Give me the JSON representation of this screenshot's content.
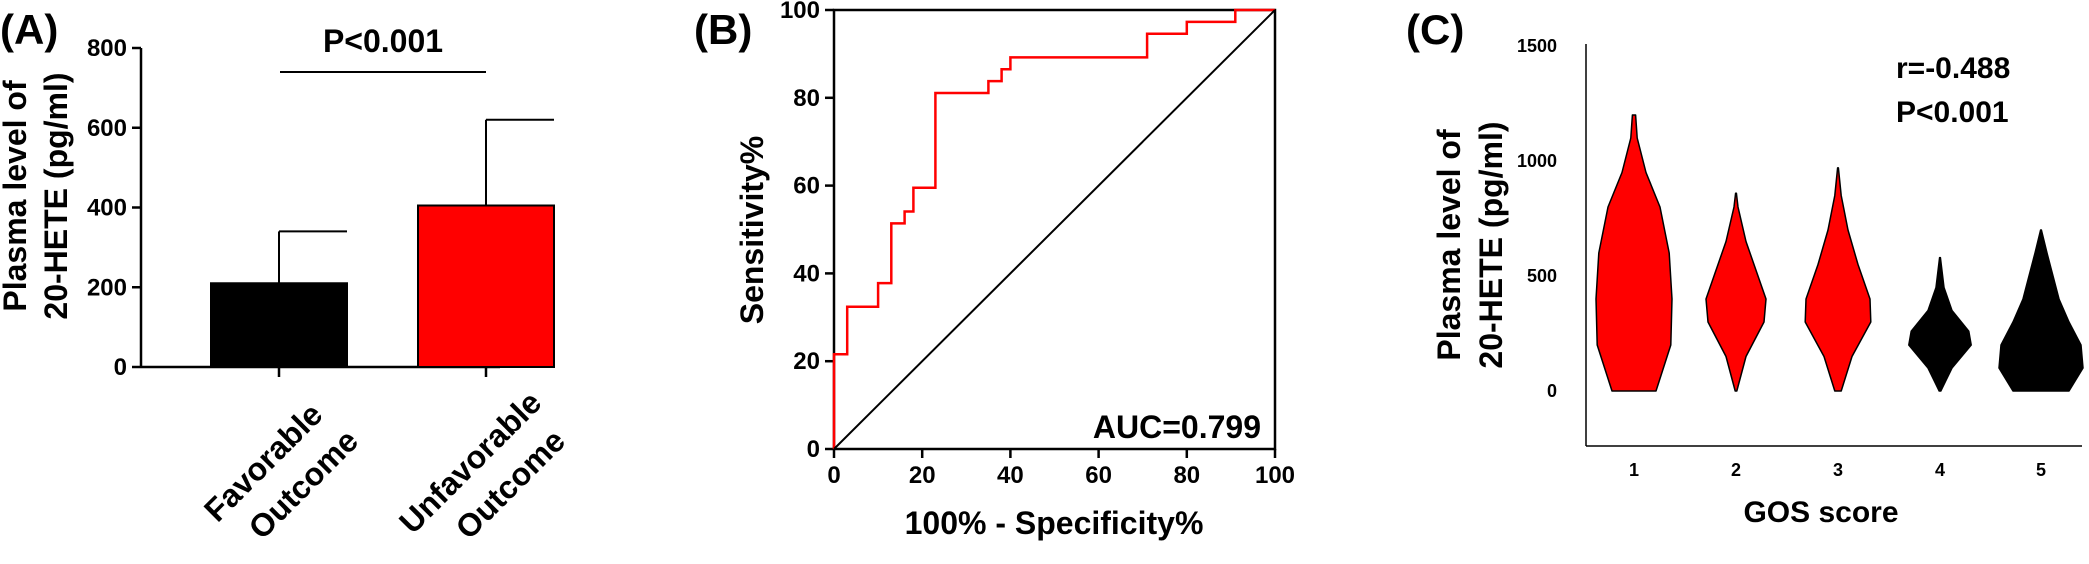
{
  "colors": {
    "black": "#000000",
    "red": "#ff0000",
    "white": "#ffffff"
  },
  "chart_data": [
    {
      "panel_label": "(A)",
      "type": "bar",
      "categories": [
        [
          "Favorable",
          "Outcome"
        ],
        [
          "Unfavorable",
          "Outcome"
        ]
      ],
      "values": [
        210,
        405
      ],
      "errors_upper": [
        340,
        620
      ],
      "bar_colors": [
        "#000000",
        "#ff0000"
      ],
      "ylabel_lines": [
        "Plasma level of",
        "20-HETE (pg/ml)"
      ],
      "xlabel": "",
      "ylim": [
        0,
        800
      ],
      "yticks": [
        0,
        200,
        400,
        600,
        800
      ],
      "annotation": "P<0.001",
      "grid": false
    },
    {
      "panel_label": "(B)",
      "type": "line",
      "xlabel": "100% - Specificity%",
      "ylabel": "Sensitivity%",
      "xlim": [
        0,
        100
      ],
      "ylim": [
        0,
        100
      ],
      "xticks": [
        0,
        20,
        40,
        60,
        80,
        100
      ],
      "yticks": [
        0,
        20,
        40,
        60,
        80,
        100
      ],
      "series": [
        {
          "color": "#ff0000",
          "x": [
            0,
            0,
            3,
            3,
            10,
            10,
            13,
            13,
            16,
            16,
            18,
            18,
            23,
            23,
            35,
            35,
            38,
            38,
            40,
            40,
            71,
            71,
            80,
            80,
            91,
            91,
            100
          ],
          "y": [
            0,
            21.6,
            21.6,
            32.4,
            32.4,
            37.8,
            37.8,
            51.4,
            51.4,
            54.1,
            54.1,
            59.5,
            59.5,
            81.1,
            81.1,
            83.8,
            83.8,
            86.5,
            86.5,
            89.2,
            89.2,
            94.6,
            94.6,
            97.3,
            97.3,
            100,
            100
          ]
        },
        {
          "color": "#000000",
          "x": [
            0,
            100
          ],
          "y": [
            0,
            100
          ]
        }
      ],
      "annotation": "AUC=0.799",
      "grid": false
    },
    {
      "panel_label": "(C)",
      "type": "violin",
      "categories": [
        "1",
        "2",
        "3",
        "4",
        "5"
      ],
      "xlabel": "GOS score",
      "ylabel_lines": [
        "Plasma level of",
        "20-HETE (pg/ml)"
      ],
      "ylim": [
        -200,
        1500
      ],
      "yticks": [
        0,
        500,
        1000,
        1500
      ],
      "violins": [
        {
          "min": 0,
          "max": 1200,
          "color": "#ff0000",
          "profile": [
            [
              0,
              0.55
            ],
            [
              200,
              0.92
            ],
            [
              400,
              0.95
            ],
            [
              600,
              0.88
            ],
            [
              800,
              0.65
            ],
            [
              950,
              0.3
            ],
            [
              1100,
              0.08
            ],
            [
              1200,
              0.04
            ]
          ]
        },
        {
          "min": 0,
          "max": 860,
          "color": "#ff0000",
          "profile": [
            [
              0,
              0.02
            ],
            [
              150,
              0.25
            ],
            [
              300,
              0.7
            ],
            [
              400,
              0.75
            ],
            [
              500,
              0.55
            ],
            [
              650,
              0.25
            ],
            [
              800,
              0.05
            ],
            [
              860,
              0.01
            ]
          ]
        },
        {
          "min": 0,
          "max": 970,
          "color": "#ff0000",
          "profile": [
            [
              0,
              0.08
            ],
            [
              150,
              0.35
            ],
            [
              300,
              0.82
            ],
            [
              400,
              0.8
            ],
            [
              550,
              0.5
            ],
            [
              700,
              0.25
            ],
            [
              850,
              0.08
            ],
            [
              970,
              0.01
            ]
          ]
        },
        {
          "min": 0,
          "max": 580,
          "color": "#000000",
          "profile": [
            [
              0,
              0.02
            ],
            [
              100,
              0.3
            ],
            [
              200,
              0.78
            ],
            [
              260,
              0.72
            ],
            [
              350,
              0.3
            ],
            [
              450,
              0.1
            ],
            [
              580,
              0.01
            ]
          ]
        },
        {
          "min": 0,
          "max": 700,
          "color": "#000000",
          "profile": [
            [
              0,
              0.7
            ],
            [
              100,
              1.05
            ],
            [
              200,
              1.0
            ],
            [
              300,
              0.7
            ],
            [
              400,
              0.45
            ],
            [
              500,
              0.3
            ],
            [
              600,
              0.15
            ],
            [
              700,
              0.01
            ]
          ]
        }
      ],
      "annotations": [
        "r=-0.488",
        "P<0.001"
      ],
      "grid": false
    }
  ]
}
